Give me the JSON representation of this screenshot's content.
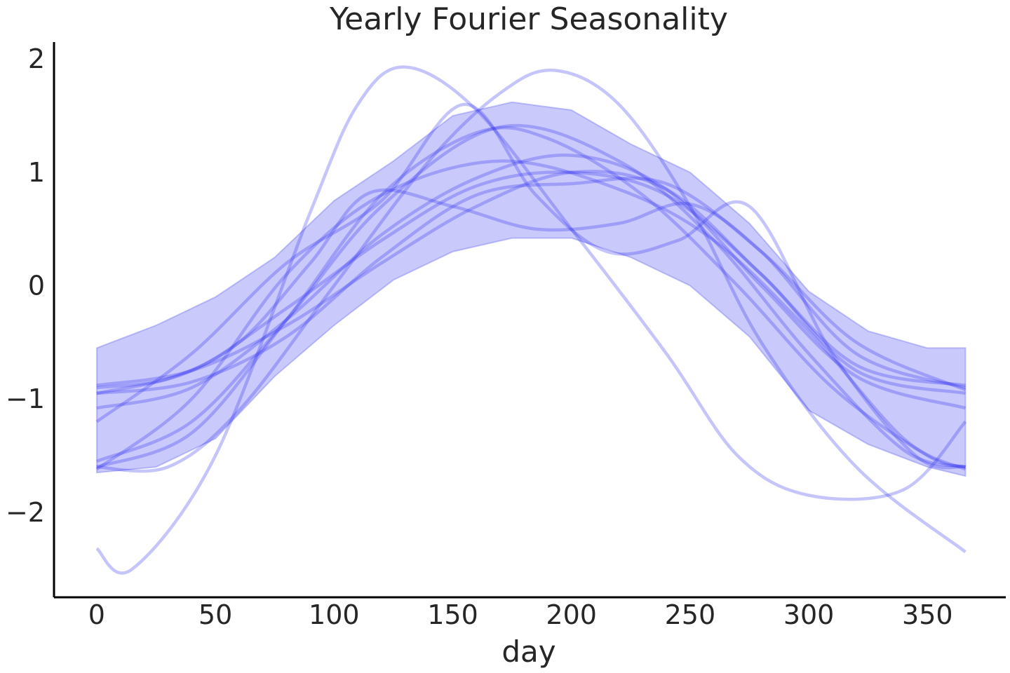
{
  "chart_data": {
    "type": "line",
    "title": "Yearly Fourier Seasonality",
    "xlabel": "day",
    "ylabel": "",
    "xlim": [
      -18,
      383
    ],
    "ylim": [
      -2.75,
      2.15
    ],
    "x_ticks": [
      0,
      50,
      100,
      150,
      200,
      250,
      300,
      350
    ],
    "y_ticks": [
      2,
      1,
      0,
      -1,
      -2
    ],
    "x_tick_labels": [
      "0",
      "50",
      "100",
      "150",
      "200",
      "250",
      "300",
      "350"
    ],
    "y_tick_labels": [
      "2",
      "1",
      "0",
      "−1",
      "−2"
    ],
    "grid": false,
    "color": "#2f2ff0",
    "band": {
      "x": [
        0,
        25,
        50,
        75,
        100,
        125,
        150,
        175,
        200,
        225,
        250,
        275,
        300,
        325,
        350,
        366
      ],
      "upper": [
        -0.55,
        -0.35,
        -0.1,
        0.25,
        0.75,
        1.1,
        1.5,
        1.62,
        1.55,
        1.25,
        1.0,
        0.55,
        -0.05,
        -0.4,
        -0.55,
        -0.55
      ],
      "lower": [
        -1.65,
        -1.6,
        -1.35,
        -0.8,
        -0.35,
        0.05,
        0.3,
        0.42,
        0.42,
        0.25,
        0.0,
        -0.45,
        -1.1,
        -1.4,
        -1.6,
        -1.68
      ]
    },
    "series": [
      {
        "x": [
          0,
          15,
          50,
          90,
          110,
          130,
          160,
          200,
          240,
          270,
          300,
          340,
          366
        ],
        "y": [
          -2.32,
          -2.5,
          -1.5,
          0.65,
          1.6,
          1.93,
          1.55,
          0.5,
          -0.6,
          -1.5,
          -1.85,
          -1.8,
          -1.2
        ]
      },
      {
        "x": [
          0,
          30,
          60,
          100,
          140,
          170,
          193,
          220,
          250,
          280,
          320,
          366
        ],
        "y": [
          -1.6,
          -1.6,
          -1.1,
          0.0,
          1.1,
          1.7,
          1.9,
          1.6,
          0.7,
          -0.5,
          -1.6,
          -2.35
        ]
      },
      {
        "x": [
          0,
          40,
          80,
          120,
          160,
          190,
          230,
          270,
          310,
          350,
          366
        ],
        "y": [
          -1.6,
          -1.3,
          -0.3,
          0.8,
          1.35,
          1.3,
          0.8,
          0.0,
          -0.9,
          -1.5,
          -1.6
        ]
      },
      {
        "x": [
          0,
          40,
          80,
          120,
          170,
          220,
          260,
          300,
          340,
          366
        ],
        "y": [
          -1.55,
          -1.2,
          -0.3,
          0.7,
          1.4,
          1.1,
          0.4,
          -0.6,
          -1.45,
          -1.6
        ]
      },
      {
        "x": [
          0,
          40,
          80,
          120,
          160,
          200,
          240,
          280,
          320,
          366
        ],
        "y": [
          -1.08,
          -0.9,
          -0.3,
          0.45,
          0.95,
          1.15,
          0.85,
          0.0,
          -0.8,
          -1.08
        ]
      },
      {
        "x": [
          0,
          40,
          80,
          120,
          160,
          200,
          240,
          280,
          320,
          366
        ],
        "y": [
          -0.95,
          -0.75,
          -0.2,
          0.4,
          0.88,
          1.0,
          0.8,
          0.1,
          -0.75,
          -0.95
        ]
      },
      {
        "x": [
          0,
          30,
          60,
          90,
          115,
          150,
          185,
          220,
          250,
          280,
          320,
          366
        ],
        "y": [
          -0.9,
          -0.82,
          -0.5,
          0.2,
          0.82,
          0.7,
          0.5,
          0.55,
          0.72,
          0.3,
          -0.6,
          -0.9
        ]
      },
      {
        "x": [
          0,
          40,
          80,
          120,
          155,
          185,
          215,
          245,
          275,
          310,
          345,
          366
        ],
        "y": [
          -1.2,
          -0.6,
          0.2,
          0.75,
          1.6,
          0.8,
          0.3,
          0.4,
          0.7,
          -0.6,
          -1.5,
          -1.6
        ]
      },
      {
        "x": [
          0,
          40,
          80,
          120,
          160,
          200,
          240,
          280,
          320,
          366
        ],
        "y": [
          -0.95,
          -0.85,
          -0.45,
          0.25,
          0.8,
          0.9,
          0.9,
          0.3,
          -0.5,
          -0.92
        ]
      },
      {
        "x": [
          0,
          40,
          80,
          120,
          160,
          200,
          240,
          280,
          320,
          366
        ],
        "y": [
          -0.88,
          -0.75,
          -0.35,
          0.2,
          0.7,
          1.0,
          0.85,
          0.1,
          -0.7,
          -0.88
        ]
      },
      {
        "x": [
          0,
          40,
          80,
          120,
          170,
          220,
          260,
          300,
          340,
          366
        ],
        "y": [
          -1.62,
          -1.0,
          0.1,
          0.8,
          1.1,
          0.85,
          0.4,
          -0.4,
          -1.35,
          -1.62
        ]
      }
    ]
  }
}
